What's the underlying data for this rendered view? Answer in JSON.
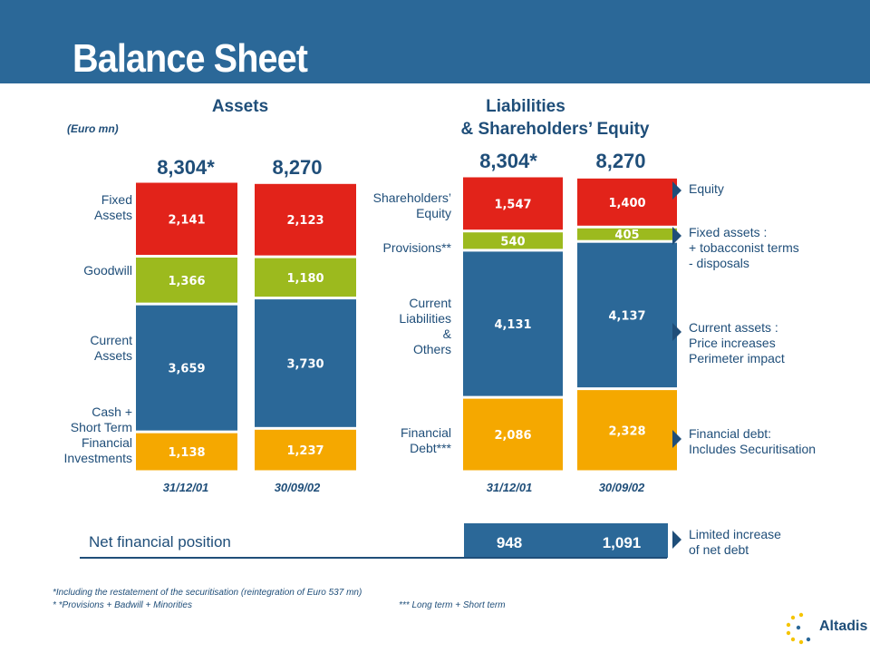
{
  "header": {
    "title": "Balance Sheet"
  },
  "assets_heading": "Assets",
  "liabilities_heading_line1": "Liabilities",
  "liabilities_heading_line2": "& Shareholders’ Equity",
  "unit_note": "(Euro mn)",
  "colors": {
    "banner": "#2b6898",
    "red": "#e2231a",
    "green": "#9cba1e",
    "blue": "#2b6898",
    "orange": "#f5a800",
    "text": "#1f4e79"
  },
  "chart_data": [
    {
      "type": "bar",
      "stacked": true,
      "name_ref": "Assets",
      "categories": [
        "31/12/01",
        "30/09/02"
      ],
      "totals": [
        "8,304*",
        "8,270"
      ],
      "series": [
        {
          "name": "Cash + Short Term Financial Investments",
          "values": [
            1138,
            1237
          ],
          "labels": [
            "1,138",
            "1,237"
          ],
          "color": "#f5a800"
        },
        {
          "name": "Current Assets",
          "values": [
            3659,
            3730
          ],
          "labels": [
            "3,659",
            "3,730"
          ],
          "color": "#2b6898"
        },
        {
          "name": "Goodwill",
          "values": [
            1366,
            1180
          ],
          "labels": [
            "1,366",
            "1,180"
          ],
          "color": "#9cba1e"
        },
        {
          "name": "Fixed Assets",
          "values": [
            2141,
            2123
          ],
          "labels": [
            "2,141",
            "2,123"
          ],
          "color": "#e2231a"
        }
      ]
    },
    {
      "type": "bar",
      "stacked": true,
      "name_ref": "Liabilities & Shareholders’ Equity",
      "categories": [
        "31/12/01",
        "30/09/02"
      ],
      "totals": [
        "8,304*",
        "8,270"
      ],
      "series": [
        {
          "name": "Financial Debt***",
          "values": [
            2086,
            2328
          ],
          "labels": [
            "2,086",
            "2,328"
          ],
          "color": "#f5a800"
        },
        {
          "name": "Current Liabilities & Others",
          "values": [
            4131,
            4137
          ],
          "labels": [
            "4,131",
            "4,137"
          ],
          "color": "#2b6898"
        },
        {
          "name": "Provisions**",
          "values": [
            540,
            405
          ],
          "labels": [
            "540",
            "405"
          ],
          "color": "#9cba1e"
        },
        {
          "name": "Shareholders’ Equity",
          "values": [
            1547,
            1400
          ],
          "labels": [
            "1,547",
            "1,400"
          ],
          "color": "#e2231a"
        }
      ]
    }
  ],
  "asset_labels": {
    "fixed": "Fixed\nAssets",
    "goodwill": "Goodwill",
    "current": "Current\nAssets",
    "cash": "Cash +\nShort Term\nFinancial\nInvestments"
  },
  "liability_labels": {
    "equity": "Shareholders’\nEquity",
    "provisions": "Provisions**",
    "current": "Current\nLiabilities\n&\nOthers",
    "debt": "Financial\nDebt***"
  },
  "notes": {
    "equity": "Equity",
    "fixed": "Fixed assets :\n+ tobacconist terms\n- disposals",
    "current": "Current assets :\nPrice increases\nPerimeter impact",
    "debt": "Financial debt:\nIncludes Securitisation",
    "net": "Limited increase\nof net debt"
  },
  "net_financial_position": {
    "label": "Net financial position",
    "values": [
      "948",
      "1,091"
    ]
  },
  "footnotes": {
    "line1": "*Including the restatement of the securitisation (reintegration  of Euro 537 mn)",
    "line2a": "* *Provisions + Badwill + Minorities",
    "line2b": "*** Long term + Short term"
  },
  "logo": {
    "text": "Altadis"
  }
}
